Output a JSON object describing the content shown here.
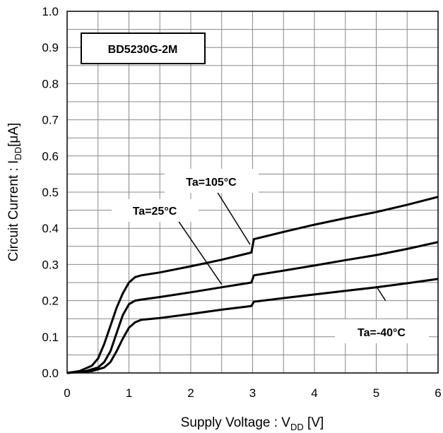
{
  "chart_data": {
    "type": "line",
    "title": "BD5230G-2M",
    "xlabel": {
      "main": "Supply Voltage : V",
      "sub": "DD",
      "unit": " [V]"
    },
    "ylabel": {
      "main": "Circuit Current : I",
      "sub": "DD",
      "unit": "[μA]"
    },
    "xlim": [
      0,
      6
    ],
    "ylim": [
      0.0,
      1.0
    ],
    "x_ticks": [
      "0",
      "1",
      "2",
      "3",
      "4",
      "5",
      "6"
    ],
    "y_ticks": [
      "0.0",
      "0.1",
      "0.2",
      "0.3",
      "0.4",
      "0.5",
      "0.6",
      "0.7",
      "0.8",
      "0.9",
      "1.0"
    ],
    "grid": true,
    "series": [
      {
        "name": "Ta=105°C",
        "points": [
          [
            0,
            0
          ],
          [
            0.2,
            0.005
          ],
          [
            0.4,
            0.02
          ],
          [
            0.5,
            0.04
          ],
          [
            0.6,
            0.08
          ],
          [
            0.7,
            0.13
          ],
          [
            0.8,
            0.18
          ],
          [
            0.9,
            0.22
          ],
          [
            1.0,
            0.25
          ],
          [
            1.1,
            0.265
          ],
          [
            1.2,
            0.27
          ],
          [
            1.5,
            0.278
          ],
          [
            2.0,
            0.295
          ],
          [
            2.5,
            0.313
          ],
          [
            2.98,
            0.333
          ],
          [
            3.02,
            0.37
          ],
          [
            3.5,
            0.39
          ],
          [
            4.0,
            0.41
          ],
          [
            4.5,
            0.428
          ],
          [
            5.0,
            0.445
          ],
          [
            5.5,
            0.465
          ],
          [
            6.0,
            0.487
          ]
        ]
      },
      {
        "name": "Ta=25°C",
        "points": [
          [
            0,
            0
          ],
          [
            0.3,
            0.005
          ],
          [
            0.5,
            0.015
          ],
          [
            0.6,
            0.03
          ],
          [
            0.7,
            0.06
          ],
          [
            0.8,
            0.11
          ],
          [
            0.9,
            0.16
          ],
          [
            1.0,
            0.19
          ],
          [
            1.1,
            0.2
          ],
          [
            1.2,
            0.203
          ],
          [
            1.5,
            0.21
          ],
          [
            2.0,
            0.223
          ],
          [
            2.5,
            0.237
          ],
          [
            2.98,
            0.25
          ],
          [
            3.02,
            0.27
          ],
          [
            3.5,
            0.283
          ],
          [
            4.0,
            0.297
          ],
          [
            4.5,
            0.312
          ],
          [
            5.0,
            0.326
          ],
          [
            5.5,
            0.343
          ],
          [
            6.0,
            0.362
          ]
        ]
      },
      {
        "name": "Ta=-40°C",
        "points": [
          [
            0,
            0
          ],
          [
            0.4,
            0.005
          ],
          [
            0.6,
            0.015
          ],
          [
            0.7,
            0.03
          ],
          [
            0.8,
            0.06
          ],
          [
            0.9,
            0.095
          ],
          [
            1.0,
            0.125
          ],
          [
            1.1,
            0.14
          ],
          [
            1.2,
            0.147
          ],
          [
            1.5,
            0.152
          ],
          [
            2.0,
            0.163
          ],
          [
            2.5,
            0.175
          ],
          [
            2.98,
            0.185
          ],
          [
            3.02,
            0.197
          ],
          [
            3.5,
            0.207
          ],
          [
            4.0,
            0.217
          ],
          [
            4.5,
            0.227
          ],
          [
            5.0,
            0.237
          ],
          [
            5.5,
            0.248
          ],
          [
            6.0,
            0.26
          ]
        ]
      }
    ],
    "annotations": [
      "Ta=105°C",
      "Ta=25°C",
      "Ta=-40°C"
    ],
    "colors": {
      "line": "#000000",
      "grid": "#888888",
      "background": "#ffffff"
    }
  }
}
